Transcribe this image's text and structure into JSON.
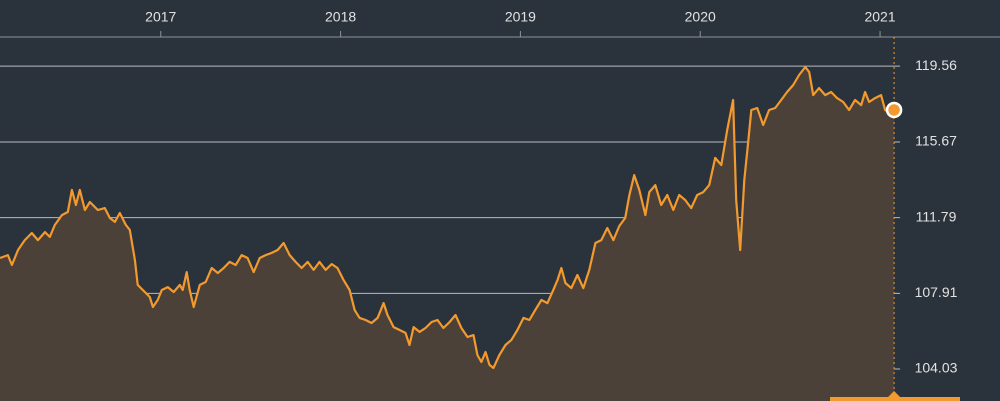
{
  "chart_data": {
    "type": "line",
    "x": [
      2016.106,
      2016.15,
      2016.172,
      2016.206,
      2016.244,
      2016.283,
      2016.317,
      2016.356,
      2016.383,
      2016.411,
      2016.45,
      2016.483,
      2016.506,
      2016.528,
      2016.55,
      2016.578,
      2016.606,
      2016.65,
      2016.689,
      2016.717,
      2016.745,
      2016.772,
      2016.806,
      2016.828,
      2016.856,
      2016.872,
      2016.911,
      2016.939,
      2016.956,
      2016.983,
      2017.006,
      2017.039,
      2017.072,
      2017.106,
      2017.122,
      2017.144,
      2017.161,
      2017.183,
      2017.217,
      2017.25,
      2017.283,
      2017.317,
      2017.35,
      2017.383,
      2017.417,
      2017.45,
      2017.483,
      2017.517,
      2017.55,
      2017.583,
      2017.617,
      2017.65,
      2017.683,
      2017.717,
      2017.75,
      2017.783,
      2017.817,
      2017.85,
      2017.883,
      2017.917,
      2017.95,
      2017.983,
      2018.017,
      2018.05,
      2018.078,
      2018.106,
      2018.139,
      2018.172,
      2018.206,
      2018.239,
      2018.261,
      2018.295,
      2018.328,
      2018.361,
      2018.383,
      2018.406,
      2018.439,
      2018.472,
      2018.506,
      2018.539,
      2018.572,
      2018.606,
      2018.639,
      2018.672,
      2018.706,
      2018.739,
      2018.761,
      2018.783,
      2018.806,
      2018.828,
      2018.85,
      2018.883,
      2018.917,
      2018.95,
      2018.983,
      2019.017,
      2019.05,
      2019.083,
      2019.117,
      2019.15,
      2019.183,
      2019.206,
      2019.228,
      2019.25,
      2019.283,
      2019.317,
      2019.35,
      2019.383,
      2019.417,
      2019.45,
      2019.483,
      2019.517,
      2019.55,
      2019.583,
      2019.606,
      2019.633,
      2019.661,
      2019.695,
      2019.717,
      2019.75,
      2019.783,
      2019.817,
      2019.85,
      2019.883,
      2019.917,
      2019.95,
      2019.983,
      2020.017,
      2020.05,
      2020.083,
      2020.117,
      2020.15,
      2020.183,
      2020.2,
      2020.222,
      2020.245,
      2020.267,
      2020.284,
      2020.317,
      2020.35,
      2020.383,
      2020.417,
      2020.45,
      2020.483,
      2020.517,
      2020.55,
      2020.584,
      2020.606,
      2020.628,
      2020.661,
      2020.695,
      2020.728,
      2020.761,
      2020.795,
      2020.828,
      2020.861,
      2020.895,
      2020.917,
      2020.939,
      2020.972,
      2021.006,
      2021.028,
      2021.05,
      2021.078
    ],
    "series": [
      {
        "color": "#f39a2e",
        "fill": "#4b4139",
        "values": [
          109.72,
          109.87,
          109.36,
          110.13,
          110.64,
          111.0,
          110.64,
          111.05,
          110.8,
          111.41,
          111.92,
          112.08,
          113.21,
          112.44,
          113.21,
          112.18,
          112.59,
          112.18,
          112.28,
          111.77,
          111.57,
          112.03,
          111.41,
          111.16,
          109.62,
          108.34,
          107.98,
          107.72,
          107.21,
          107.57,
          108.08,
          108.23,
          107.98,
          108.34,
          108.08,
          109.0,
          108.08,
          107.21,
          108.34,
          108.49,
          109.21,
          108.95,
          109.21,
          109.52,
          109.36,
          109.87,
          109.72,
          109.0,
          109.72,
          109.87,
          109.98,
          110.13,
          110.49,
          109.87,
          109.52,
          109.21,
          109.52,
          109.11,
          109.52,
          109.11,
          109.41,
          109.21,
          108.59,
          108.08,
          107.06,
          106.65,
          106.54,
          106.39,
          106.65,
          107.41,
          106.8,
          106.18,
          106.03,
          105.88,
          105.26,
          106.18,
          105.93,
          106.13,
          106.44,
          106.54,
          106.13,
          106.44,
          106.8,
          106.13,
          105.67,
          105.77,
          104.75,
          104.39,
          104.9,
          104.24,
          104.08,
          104.75,
          105.26,
          105.52,
          106.03,
          106.65,
          106.54,
          107.06,
          107.57,
          107.41,
          108.08,
          108.59,
          109.21,
          108.44,
          108.18,
          108.85,
          108.18,
          109.11,
          110.49,
          110.64,
          111.26,
          110.64,
          111.36,
          111.77,
          112.95,
          113.97,
          113.21,
          111.92,
          113.1,
          113.46,
          112.44,
          112.95,
          112.18,
          112.95,
          112.69,
          112.28,
          112.95,
          113.1,
          113.46,
          114.85,
          114.49,
          116.28,
          117.82,
          112.69,
          110.13,
          113.72,
          115.67,
          117.31,
          117.41,
          116.54,
          117.31,
          117.41,
          117.82,
          118.23,
          118.59,
          119.1,
          119.51,
          119.25,
          118.07,
          118.43,
          118.07,
          118.23,
          117.92,
          117.72,
          117.31,
          117.82,
          117.56,
          118.23,
          117.72,
          117.92,
          118.07,
          117.31,
          117.2,
          117.31
        ]
      }
    ],
    "xlim": [
      2016.106,
      2021.667
    ],
    "xticks": [
      2017,
      2018,
      2019,
      2020,
      2021
    ],
    "ylim": [
      102.39,
      121.05
    ],
    "yticks": [
      104.03,
      107.91,
      111.79,
      115.67,
      119.56
    ],
    "grid": true
  }
}
